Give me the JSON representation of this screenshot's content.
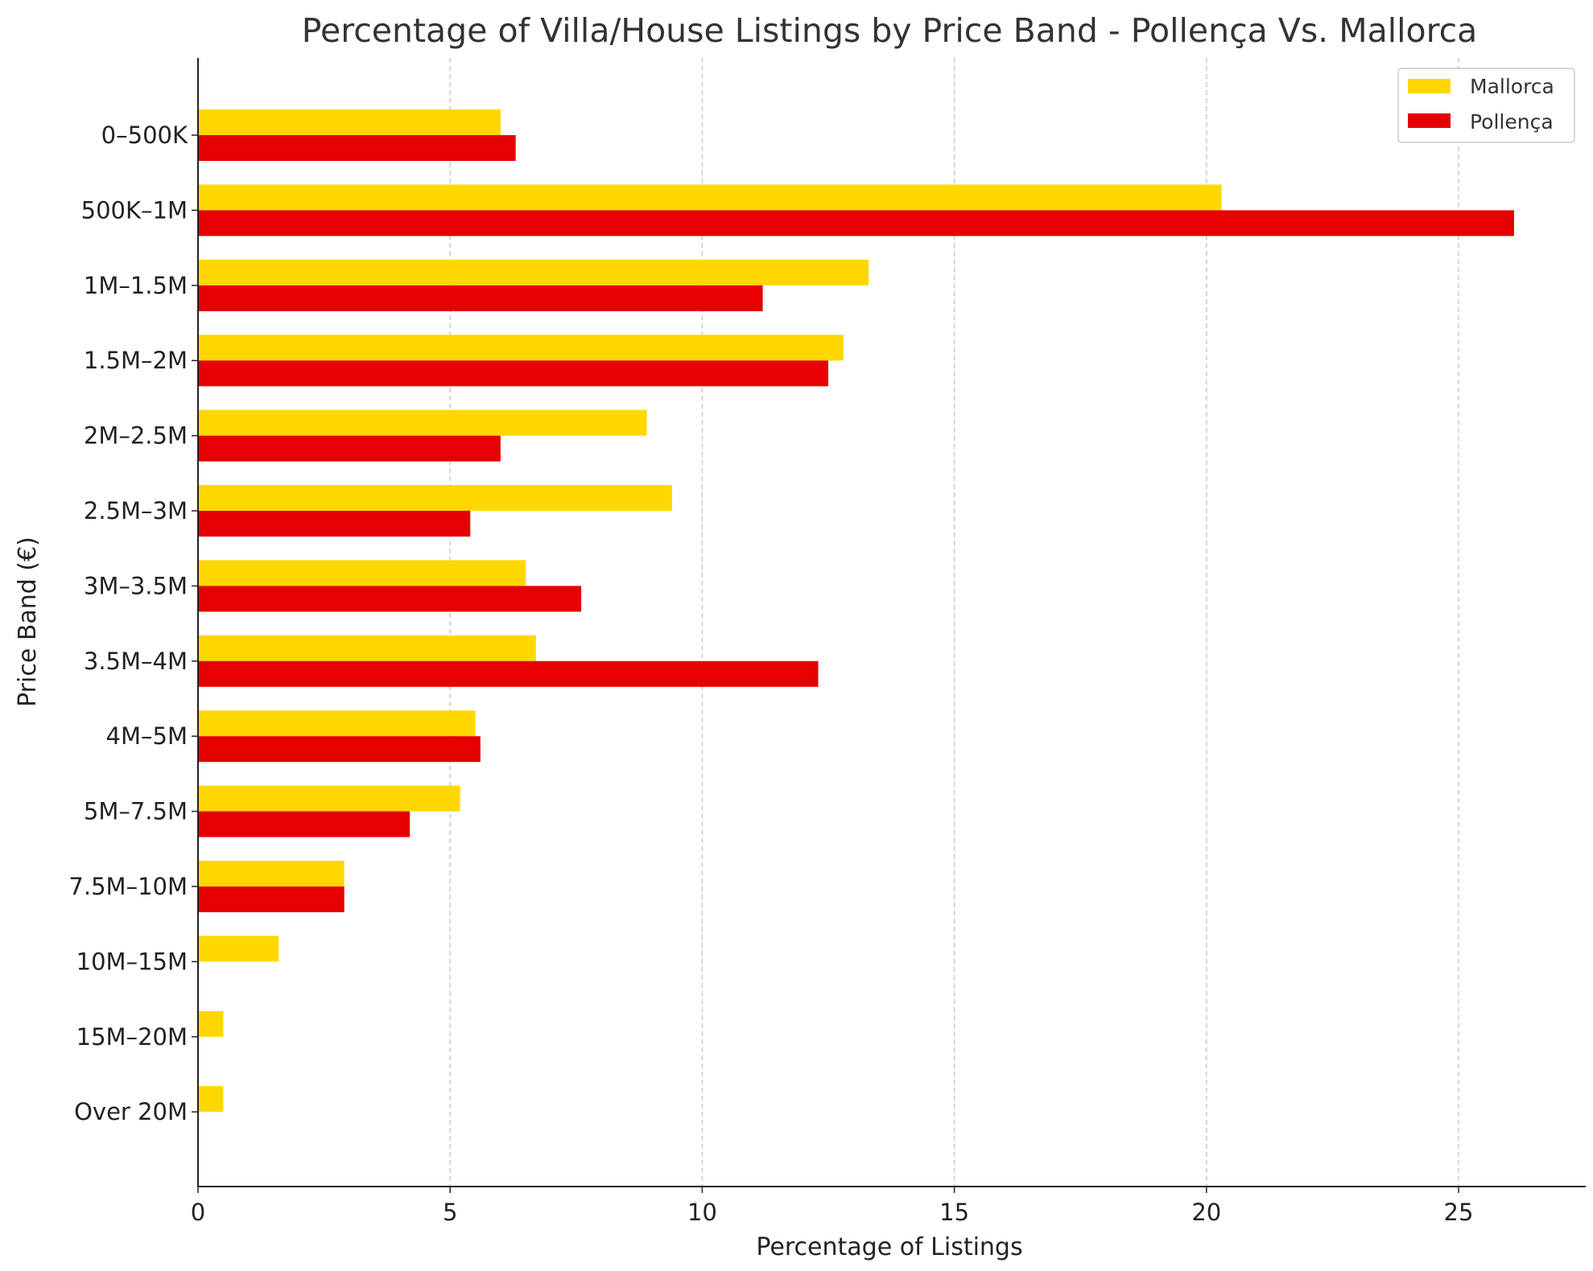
{
  "chart_data": {
    "type": "bar",
    "orientation": "horizontal",
    "title": "Percentage of Villa/House Listings by Price Band - Pollença Vs. Mallorca",
    "xlabel": "Percentage of Listings",
    "ylabel": "Price Band (€)",
    "xlim": [
      0,
      27.5
    ],
    "xticks": [
      0,
      5,
      10,
      15,
      20,
      25
    ],
    "grid": "x-dashed",
    "legend_position": "top-right",
    "categories": [
      "0–500K",
      "500K–1M",
      "1M–1.5M",
      "1.5M–2M",
      "2M–2.5M",
      "2.5M–3M",
      "3M–3.5M",
      "3.5M–4M",
      "4M–5M",
      "5M–7.5M",
      "7.5M–10M",
      "10M–15M",
      "15M–20M",
      "Over 20M"
    ],
    "series": [
      {
        "name": "Mallorca",
        "color": "#FFD700",
        "values": [
          6.0,
          20.3,
          13.3,
          12.8,
          8.9,
          9.4,
          6.5,
          6.7,
          5.5,
          5.2,
          2.9,
          1.6,
          0.5,
          0.5
        ]
      },
      {
        "name": "Pollença",
        "color": "#E60000",
        "values": [
          6.3,
          26.1,
          11.2,
          12.5,
          6.0,
          5.4,
          7.6,
          12.3,
          5.6,
          4.2,
          2.9,
          0,
          0,
          0
        ]
      }
    ]
  }
}
